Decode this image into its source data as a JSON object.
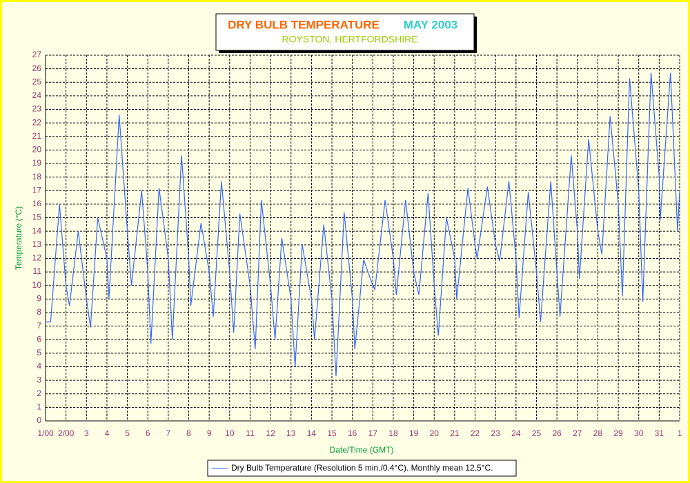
{
  "chart_data": {
    "type": "line",
    "title": "DRY BULB TEMPERATURE",
    "period": "MAY 2003",
    "subtitle": "ROYSTON, HERTFORDSHIRE",
    "xlabel": "Date/Time (GMT)",
    "ylabel": "Temperature (°C)",
    "x": [
      1,
      1.25,
      1.68,
      2,
      2.17,
      2.6,
      3,
      3.2,
      3.55,
      4,
      4.1,
      4.6,
      5,
      5.2,
      5.7,
      6,
      6.15,
      6.55,
      7,
      7.2,
      7.65,
      8,
      8.1,
      8.6,
      9,
      9.2,
      9.6,
      10,
      10.2,
      10.5,
      11,
      11.25,
      11.55,
      12,
      12.22,
      12.55,
      13,
      13.2,
      13.55,
      14,
      14.15,
      14.6,
      15,
      15.2,
      15.6,
      16,
      16.12,
      16.55,
      17,
      17.1,
      17.6,
      18,
      18.15,
      18.6,
      19,
      19.25,
      19.7,
      20,
      20.2,
      20.6,
      21,
      21.1,
      21.65,
      22,
      22.1,
      22.6,
      23,
      23.2,
      23.65,
      24,
      24.15,
      24.6,
      25,
      25.2,
      25.7,
      26,
      26.15,
      26.7,
      27,
      27.1,
      27.55,
      28,
      28.2,
      28.6,
      29,
      29.2,
      29.55,
      30,
      30.2,
      30.6,
      31,
      31.05,
      31.55,
      31.9,
      32
    ],
    "series": [
      {
        "name": "Dry Bulb Temperature (Resolution 5 min./0.4°C). Monthly mean 12.5°C.",
        "color": "#3366ff",
        "values": [
          7.3,
          7.3,
          16,
          10,
          8.5,
          14,
          9,
          6.9,
          15,
          12,
          9,
          22.6,
          14,
          10,
          17,
          11,
          5.7,
          17.2,
          12,
          6,
          19.6,
          12,
          8.5,
          14.6,
          11,
          7.7,
          17.7,
          11,
          6.5,
          15.3,
          10,
          5.3,
          16.3,
          10,
          6,
          13.5,
          9,
          4,
          13,
          9,
          6,
          14.5,
          9,
          3.3,
          15.4,
          9,
          5.3,
          11.9,
          10,
          9.7,
          16.3,
          12,
          9.3,
          16.3,
          11,
          9.3,
          16.8,
          10,
          6.3,
          15,
          12,
          9,
          17.2,
          13,
          12,
          17.3,
          13,
          11.8,
          17.7,
          12,
          7.6,
          16.9,
          11,
          7.3,
          17.7,
          11,
          7.7,
          19.6,
          14,
          10.5,
          20.8,
          14,
          12.3,
          22.5,
          16,
          9.2,
          25.3,
          17,
          8.8,
          25.7,
          18,
          14.8,
          25.7,
          14,
          17
        ]
      }
    ],
    "xlim": [
      1,
      32
    ],
    "xticks": [
      {
        "value": 1,
        "label": "1/00"
      },
      {
        "value": 2,
        "label": "2/00"
      },
      3,
      4,
      5,
      6,
      7,
      8,
      9,
      10,
      11,
      12,
      13,
      14,
      15,
      16,
      17,
      18,
      19,
      20,
      21,
      22,
      23,
      24,
      25,
      26,
      27,
      28,
      29,
      30,
      31,
      {
        "value": 32,
        "label": "1"
      }
    ],
    "ylim": [
      0,
      27
    ],
    "yticks": [
      0,
      1,
      2,
      3,
      4,
      5,
      6,
      7,
      8,
      9,
      10,
      11,
      12,
      13,
      14,
      15,
      16,
      17,
      18,
      19,
      20,
      21,
      22,
      23,
      24,
      25,
      26,
      27
    ],
    "grid": true
  }
}
